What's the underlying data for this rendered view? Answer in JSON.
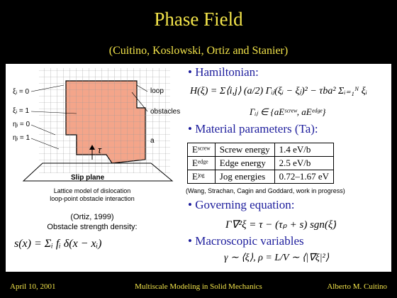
{
  "header": {
    "title": "Phase Field",
    "subtitle": "(Cuitino, Koslowski, Ortiz and Stanier)"
  },
  "figure": {
    "legend": [
      "ξᵢ = 0",
      "ξᵢ = 1",
      "ηᵢ = 0",
      "ηᵢ = 1"
    ],
    "labels": {
      "loop": "loop",
      "obstacles": "obstacles",
      "spacing": "a",
      "stress": "τ",
      "plane": "Slip plane"
    },
    "caption": [
      "Lattice model of dislocation",
      "loop-point obstacle interaction"
    ]
  },
  "left_text": {
    "reference": "(Ortiz, 1999)",
    "density_label": "Obstacle strength density:",
    "density_equation": "s(x) = Σᵢ fᵢ δ(x − xᵢ)"
  },
  "bullets": [
    {
      "text": "Hamiltonian:",
      "equations": [
        "H(ξ) = Σ⟨i,j⟩ (a/2) Γᵢⱼ(ξᵢ − ξⱼ)² − τba² Σᵢ₌₁ᴺ ξᵢ",
        "Γᵢⱼ ∈ {aEˢᶜʳᵉʷ, aEᵉᵈᵍᵉ}"
      ]
    },
    {
      "text": "Material parameters (Ta):",
      "equations": []
    },
    {
      "text": "Governing equation:",
      "equations": [
        "Γ∇²ξ = τ − (τₚ + s) sgn(ξ̇)"
      ]
    },
    {
      "text": "Macroscopic variables",
      "equations": [
        "γ ∼ ⟨ξ⟩, ρ = L/V ∼ ⟨|∇ξ|²⟩"
      ]
    }
  ],
  "table": {
    "rows": [
      [
        "Eˢᶜʳᵉʷ",
        "Screw energy",
        "1.4 eV/b"
      ],
      [
        "Eᵉᵈᵍᵉ",
        "Edge energy",
        "2.5 eV/b"
      ],
      [
        "Eʲᵒᵍ",
        "Jog energies",
        "0.72–1.67 eV"
      ]
    ]
  },
  "citation": "(Wang, Strachan, Cagin and Goddard, work in progress)",
  "footer": {
    "date": "April 10, 2001",
    "course": "Multiscale Modeling in Solid Mechanics",
    "author": "Alberto M. Cuitino"
  }
}
